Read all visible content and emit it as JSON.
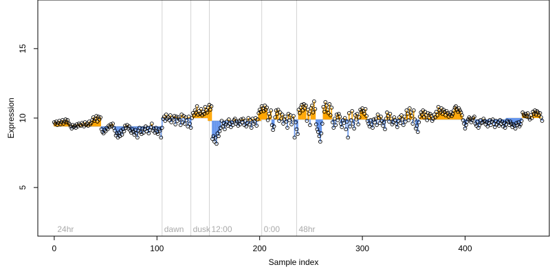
{
  "chart_data": {
    "type": "scatter",
    "xlabel": "Sample index",
    "ylabel": "Expression",
    "xlim": [
      -16,
      482
    ],
    "ylim": [
      1.5,
      18.5
    ],
    "x_ticks": [
      0,
      100,
      200,
      300,
      400
    ],
    "y_ticks": [
      5,
      10,
      15
    ],
    "baselines": [
      {
        "x_start": 0,
        "x_end": 105,
        "y": 9.4
      },
      {
        "x_start": 105,
        "x_end": 150,
        "y": 10.0
      },
      {
        "x_start": 150,
        "x_end": 202,
        "y": 9.8
      },
      {
        "x_start": 202,
        "x_end": 440,
        "y": 9.9
      },
      {
        "x_start": 440,
        "x_end": 465,
        "y": 10.0
      }
    ],
    "annotations": [
      {
        "x": 3,
        "label": "24hr"
      },
      {
        "x": 107,
        "label": "dawn"
      },
      {
        "x": 135,
        "label": "dusk"
      },
      {
        "x": 153,
        "label": "12:00"
      },
      {
        "x": 204,
        "label": "0:00"
      },
      {
        "x": 238,
        "label": "48hr"
      }
    ],
    "vlines": [
      105,
      133,
      151,
      202,
      236
    ],
    "colors": {
      "above": "#ffa500",
      "below": "#6495ed",
      "vline": "#d3d3d3",
      "annotation": "#a9a9a9",
      "point_stroke": "#000000"
    },
    "series": [
      {
        "values": [
          9.7,
          9.6,
          9.75,
          9.5,
          9.65,
          9.8,
          9.55,
          9.7,
          9.85,
          9.6,
          9.75,
          9.9,
          9.7,
          9.85,
          9.65,
          9.55,
          9.4,
          9.25,
          9.5,
          9.35,
          9.45,
          9.3,
          9.55,
          9.4,
          9.6,
          9.5,
          9.45,
          9.65,
          9.55,
          9.4,
          9.7,
          9.5,
          9.6,
          9.45,
          9.75,
          9.55,
          9.65,
          9.85,
          10.05,
          9.8,
          9.95,
          10.15,
          9.75,
          10.1,
          9.9,
          10.05,
          9.2,
          9.0,
          8.9,
          9.15,
          9.05,
          9.3,
          9.2,
          9.45,
          9.35,
          9.55,
          9.4,
          9.6,
          9.3,
          9.1,
          8.75,
          8.9,
          8.6,
          8.95,
          8.7,
          9.1,
          8.8,
          9.2,
          9.05,
          9.45,
          9.3,
          9.5,
          9.25,
          9.4,
          9.1,
          8.95,
          9.2,
          9.05,
          8.8,
          9.15,
          8.9,
          8.6,
          9.1,
          9.3,
          9.0,
          8.85,
          9.25,
          8.95,
          9.2,
          9.4,
          9.05,
          9.3,
          8.9,
          9.15,
          9.35,
          9.6,
          9.1,
          9.25,
          8.95,
          9.3,
          9.0,
          8.85,
          9.2,
          9.1,
          8.6,
          9.3,
          9.95,
          10.1,
          9.8,
          10.25,
          9.95,
          10.05,
          9.85,
          10.2,
          9.7,
          10.0,
          9.9,
          10.15,
          9.55,
          10.1,
          9.8,
          10.05,
          9.9,
          9.5,
          10.25,
          9.7,
          10.15,
          9.6,
          10.05,
          9.85,
          9.4,
          10.1,
          9.6,
          9.3,
          10.0,
          10.35,
          10.2,
          10.55,
          10.4,
          10.85,
          10.25,
          10.5,
          10.3,
          10.65,
          10.2,
          10.45,
          10.3,
          10.8,
          10.55,
          10.4,
          10.75,
          10.95,
          10.6,
          10.85,
          8.5,
          8.7,
          8.3,
          8.6,
          8.15,
          8.9,
          8.7,
          9.05,
          9.3,
          9.8,
          9.4,
          9.65,
          9.2,
          9.55,
          9.75,
          9.45,
          9.9,
          9.6,
          9.35,
          9.7,
          9.5,
          9.85,
          9.95,
          9.6,
          9.75,
          9.45,
          9.8,
          9.55,
          9.9,
          9.7,
          9.95,
          9.5,
          9.8,
          9.4,
          9.65,
          10.0,
          9.55,
          9.85,
          9.3,
          9.95,
          9.6,
          9.75,
          10.0,
          9.45,
          9.9,
          10.35,
          10.6,
          10.45,
          10.85,
          10.7,
          10.5,
          10.9,
          10.6,
          10.75,
          9.85,
          10.3,
          10.1,
          10.55,
          9.5,
          9.15,
          9.4,
          10.05,
          10.55,
          10.3,
          10.6,
          9.8,
          10.4,
          9.95,
          10.25,
          9.6,
          9.9,
          10.1,
          9.75,
          9.3,
          10.3,
          9.85,
          10.2,
          9.55,
          9.9,
          10.15,
          8.6,
          9.7,
          9.2,
          8.85,
          10.6,
          10.35,
          10.75,
          10.95,
          10.55,
          11.0,
          10.7,
          10.9,
          9.8,
          10.6,
          10.3,
          9.5,
          10.7,
          10.9,
          10.4,
          11.2,
          10.65,
          9.55,
          9.2,
          9.0,
          8.7,
          8.3,
          8.9,
          9.6,
          10.8,
          10.45,
          11.15,
          10.9,
          10.6,
          10.35,
          11.0,
          10.2,
          10.75,
          9.7,
          9.3,
          9.95,
          9.5,
          10.25,
          9.85,
          10.3,
          10.1,
          9.6,
          9.35,
          9.85,
          9.65,
          10.0,
          9.2,
          9.75,
          8.6,
          10.35,
          9.4,
          9.85,
          10.5,
          9.6,
          9.25,
          10.2,
          9.9,
          10.3,
          9.55,
          10.05,
          10.6,
          10.45,
          10.7,
          10.5,
          10.3,
          10.65,
          10.15,
          9.8,
          9.6,
          9.4,
          9.85,
          9.55,
          9.3,
          9.9,
          9.7,
          9.95,
          9.5,
          10.25,
          10.0,
          9.65,
          10.1,
          9.8,
          9.45,
          9.7,
          9.2,
          9.95,
          10.4,
          10.15,
          9.75,
          10.3,
          9.95,
          9.55,
          9.7,
          10.05,
          9.85,
          9.6,
          9.35,
          9.8,
          10.05,
          9.65,
          10.2,
          9.9,
          9.5,
          10.1,
          9.75,
          10.55,
          10.3,
          9.85,
          10.7,
          10.4,
          10.15,
          9.6,
          10.55,
          9.9,
          9.25,
          9.45,
          9.0,
          9.7,
          10.1,
          10.4,
          10.25,
          10.55,
          10.05,
          10.45,
          10.2,
          9.85,
          10.35,
          10.0,
          10.3,
          10.15,
          9.8,
          9.95,
          10.25,
          10.05,
          10.45,
          10.2,
          10.8,
          10.55,
          10.4,
          10.7,
          10.3,
          10.6,
          10.45,
          10.2,
          10.5,
          10.35,
          10.1,
          10.25,
          10.4,
          10.15,
          10.3,
          10.55,
          10.75,
          10.85,
          10.6,
          10.45,
          10.7,
          10.55,
          10.4,
          10.2,
          9.85,
          9.6,
          9.25,
          9.5,
          9.75,
          9.9,
          10.05,
          9.95,
          9.7,
          9.85,
          10.0,
          10.1,
          9.6,
          9.45,
          9.75,
          9.3,
          9.5,
          9.85,
          9.65,
          9.7,
          9.95,
          9.8,
          9.55,
          9.7,
          9.4,
          9.65,
          9.85,
          9.5,
          9.75,
          9.9,
          9.6,
          9.35,
          9.8,
          9.55,
          9.7,
          9.45,
          9.85,
          9.6,
          9.75,
          9.4,
          9.65,
          9.3,
          9.55,
          9.8,
          9.7,
          9.5,
          9.75,
          9.6,
          9.35,
          9.55,
          9.45,
          9.25,
          9.65,
          9.5,
          9.7,
          9.4,
          9.55,
          9.8,
          10.4,
          10.25,
          10.15,
          10.3,
          10.1,
          10.35,
          10.05,
          9.9,
          10.2,
          10.0,
          10.45,
          10.3,
          10.55,
          10.25,
          10.5,
          10.4,
          10.2,
          10.35,
          10.05,
          9.8
        ]
      }
    ]
  }
}
